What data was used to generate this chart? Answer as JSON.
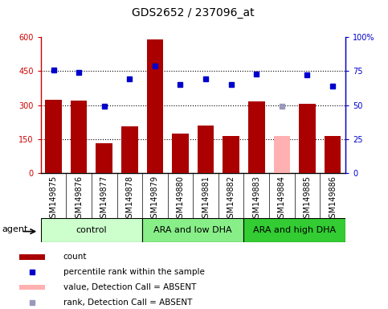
{
  "title": "GDS2652 / 237096_at",
  "categories": [
    "GSM149875",
    "GSM149876",
    "GSM149877",
    "GSM149878",
    "GSM149879",
    "GSM149880",
    "GSM149881",
    "GSM149882",
    "GSM149883",
    "GSM149884",
    "GSM149885",
    "GSM149886"
  ],
  "bar_values": [
    325,
    320,
    130,
    205,
    590,
    175,
    210,
    165,
    315,
    165,
    305,
    165
  ],
  "bar_colors": [
    "#aa0000",
    "#aa0000",
    "#aa0000",
    "#aa0000",
    "#aa0000",
    "#aa0000",
    "#aa0000",
    "#aa0000",
    "#aa0000",
    "#ffb0b0",
    "#aa0000",
    "#aa0000"
  ],
  "percentile_values": [
    76,
    74,
    49,
    69,
    79,
    65,
    69,
    65,
    73,
    49,
    72,
    64
  ],
  "percentile_absent": [
    false,
    false,
    false,
    false,
    false,
    false,
    false,
    false,
    false,
    true,
    false,
    false
  ],
  "groups": [
    {
      "label": "control",
      "start": 0,
      "end": 4,
      "color": "#ccffcc"
    },
    {
      "label": "ARA and low DHA",
      "start": 4,
      "end": 8,
      "color": "#88ee88"
    },
    {
      "label": "ARA and high DHA",
      "start": 8,
      "end": 12,
      "color": "#33cc33"
    }
  ],
  "ylim_left": [
    0,
    600
  ],
  "ylim_right": [
    0,
    100
  ],
  "yticks_left": [
    0,
    150,
    300,
    450,
    600
  ],
  "ytick_labels_left": [
    "0",
    "150",
    "300",
    "450",
    "600"
  ],
  "yticks_right": [
    0,
    25,
    50,
    75,
    100
  ],
  "ytick_labels_right": [
    "0",
    "25",
    "50",
    "75",
    "100%"
  ],
  "hlines": [
    150,
    300,
    450
  ],
  "bar_color_dark": "#aa0000",
  "bar_color_absent": "#ffb0b0",
  "dot_color_present": "#0000cc",
  "dot_color_absent": "#9999bb",
  "agent_label": "agent",
  "legend_items": [
    {
      "label": "count",
      "color": "#aa0000",
      "type": "bar"
    },
    {
      "label": "percentile rank within the sample",
      "color": "#0000cc",
      "type": "dot"
    },
    {
      "label": "value, Detection Call = ABSENT",
      "color": "#ffb0b0",
      "type": "bar"
    },
    {
      "label": "rank, Detection Call = ABSENT",
      "color": "#9999bb",
      "type": "dot"
    }
  ],
  "plot_bg": "#ffffff",
  "xticklabel_bg": "#d8d8d8",
  "title_fontsize": 10,
  "tick_fontsize": 7,
  "group_fontsize": 8,
  "legend_fontsize": 7.5
}
